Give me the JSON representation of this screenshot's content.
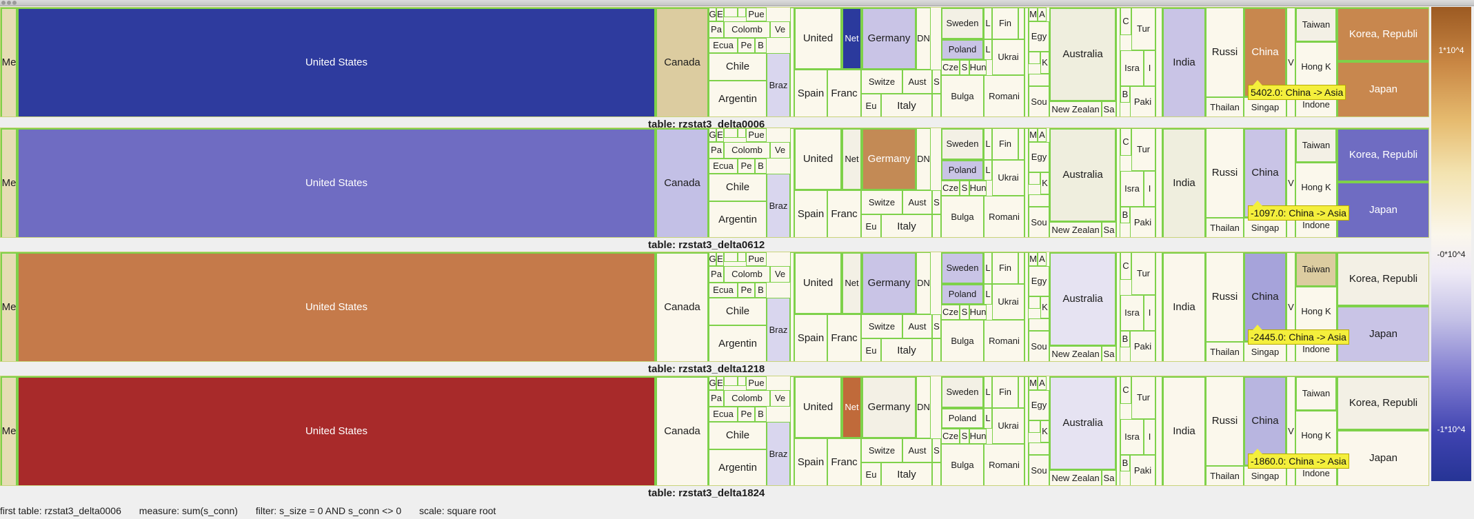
{
  "labels": {
    "me": "Me",
    "united_states": "United States",
    "canada": "Canada",
    "g": "G",
    "e": "E",
    "pue": "Pue",
    "pa": "Pa",
    "colomb": "Colomb",
    "ve": "Ve",
    "ecua": "Ecua",
    "pe": "Pe",
    "b": "B",
    "chile": "Chile",
    "braz": "Braz",
    "argentin": "Argentin",
    "united": "United",
    "net": "Net",
    "germany": "Germany",
    "dn": "DN",
    "spain": "Spain",
    "franc": "Franc",
    "switze": "Switze",
    "aust": "Aust",
    "s": "S",
    "eu": "Eu",
    "italy": "Italy",
    "sweden": "Sweden",
    "poland": "Poland",
    "cze": "Cze",
    "hun": "Hun",
    "bulga": "Bulga",
    "l": "L",
    "fin": "Fin",
    "ukrai": "Ukrai",
    "romani": "Romani",
    "m": "M",
    "a": "A",
    "egy": "Egy",
    "k": "K",
    "sou": "Sou",
    "australia": "Australia",
    "new_zealan": "New Zealan",
    "sa": "Sa",
    "c": "C",
    "tur": "Tur",
    "isra": "Isra",
    "i": "I",
    "paki": "Paki",
    "india": "India",
    "russi": "Russi",
    "thailan": "Thailan",
    "china": "China",
    "singap": "Singap",
    "v": "V",
    "taiwan": "Taiwan",
    "hong_k": "Hong K",
    "indone": "Indone",
    "korea": "Korea, Republi",
    "japan": "Japan"
  },
  "panels": [
    {
      "caption": "table: rzstat3_delta0006",
      "tooltip": "5402.0: China -> Asia"
    },
    {
      "caption": "table: rzstat3_delta0612",
      "tooltip": "-1097.0: China -> Asia"
    },
    {
      "caption": "table: rzstat3_delta1218",
      "tooltip": "-2445.0: China -> Asia"
    },
    {
      "caption": "table: rzstat3_delta1824",
      "tooltip": "-1860.0: China -> Asia"
    }
  ],
  "scale": {
    "top": "1*10^4",
    "mid": "-0*10^4",
    "bottom": "-1*10^4"
  },
  "status": {
    "first_table": "first table: rzstat3_delta0006",
    "measure": "measure: sum(s_conn)",
    "filter": "filter: s_size = 0 AND s_conn <> 0",
    "scale": "scale: square root"
  },
  "colors": {
    "us": [
      "#2e3b9e",
      "#6f6cc2",
      "#c57a4a",
      "#a82a2a"
    ],
    "canada": [
      "#dccca0",
      "#c3c0e6",
      "#fbf7ec",
      "#fbf7ec"
    ],
    "net": [
      "#2b3a9d",
      "#f3f0e5",
      "#f3f0e5",
      "#c06a3a"
    ],
    "germany": [
      "#c9c4e6",
      "#c38a55",
      "#c9c4e6",
      "#f3f0e5"
    ],
    "china": [
      "#c8874e",
      "#c9c4e6",
      "#a6a3da",
      "#b8b5e0"
    ],
    "korea": [
      "#c8874e",
      "#6f6cc2",
      "#f3f0e5",
      "#f3f0e5"
    ],
    "japan": [
      "#c8874e",
      "#6f6cc2",
      "#c9c4e6",
      "#fbf7ec"
    ],
    "poland": [
      "#c9c4e6",
      "#c9c4e6",
      "#c9c4e6",
      "#fbf7ec"
    ],
    "sweden": [
      "#f3f0e5",
      "#f3f0e5",
      "#c9c4e6",
      "#f3f0e5"
    ],
    "india": [
      "#c9c4e6",
      "#efeede",
      "#fbf7ec",
      "#fbf7ec"
    ],
    "australia": [
      "#efeede",
      "#efeede",
      "#e6e3f2",
      "#e6e3f2"
    ],
    "taiwan": [
      "#f3f0e5",
      "#f3f0e5",
      "#dccca0",
      "#fbf7ec"
    ],
    "swatch": "#7ed14a"
  }
}
